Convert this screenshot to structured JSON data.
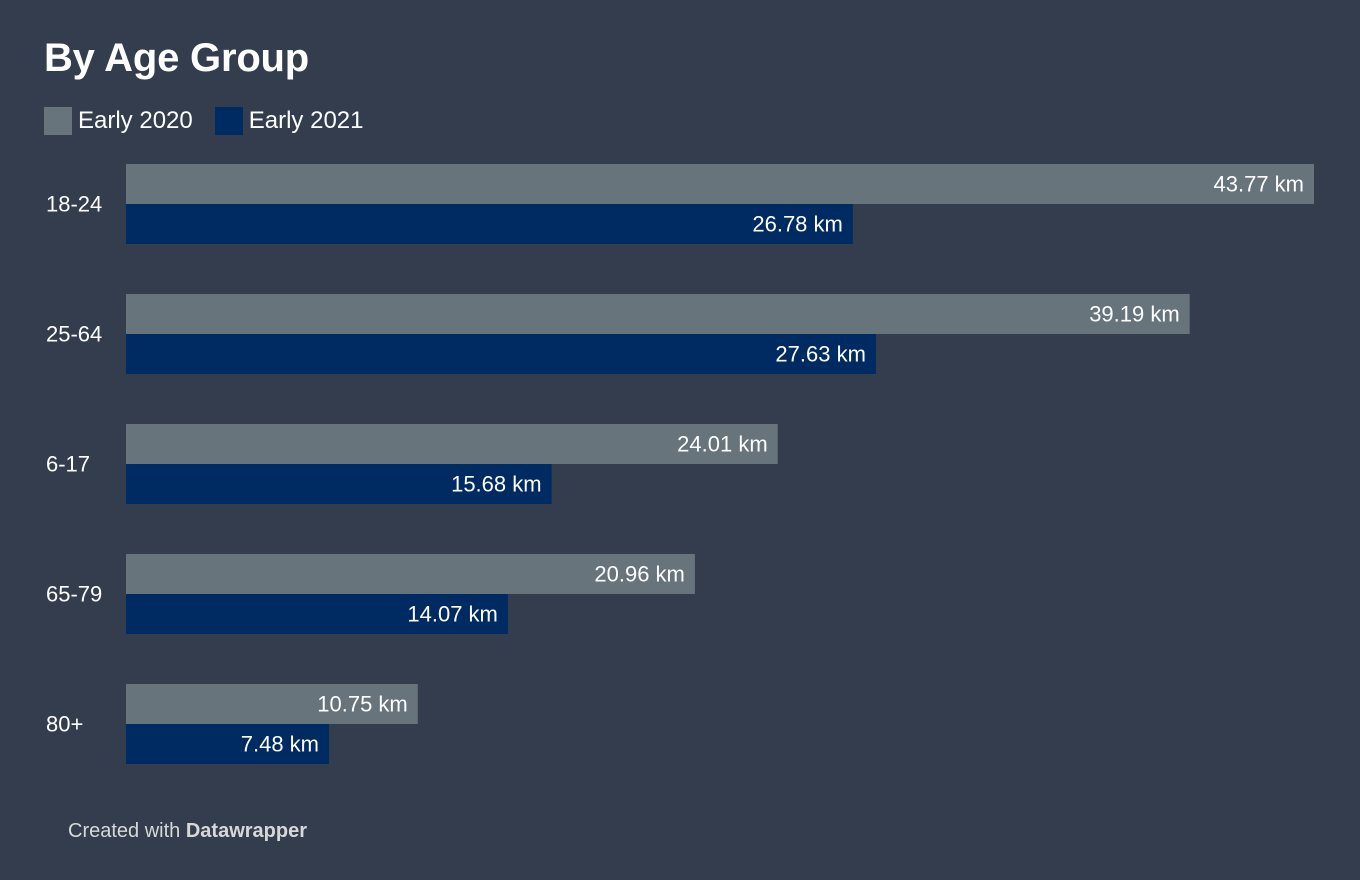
{
  "chart_data": {
    "type": "bar",
    "orientation": "horizontal",
    "title": "By Age Group",
    "categories": [
      "18-24",
      "25-64",
      "6-17",
      "65-79",
      "80+"
    ],
    "series": [
      {
        "name": "Early 2020",
        "color": "#67747c",
        "values": [
          43.77,
          39.19,
          24.01,
          20.96,
          10.75
        ],
        "labels": [
          "43.77 km",
          "39.19 km",
          "24.01 km",
          "20.96 km",
          "10.75 km"
        ]
      },
      {
        "name": "Early 2021",
        "color": "#002a62",
        "values": [
          26.78,
          27.63,
          15.68,
          14.07,
          7.48
        ],
        "labels": [
          "26.78 km",
          "27.63 km",
          "15.68 km",
          "14.07 km",
          "7.48 km"
        ]
      }
    ],
    "unit": "km",
    "xlim": [
      0,
      43.77
    ],
    "grid": false,
    "legend_position": "top-left"
  },
  "colors": {
    "background": "#333d4d",
    "text": "#ffffff",
    "footer_text": "#d8d8d8"
  },
  "footer": {
    "prefix": "Created with ",
    "brand": "Datawrapper"
  }
}
